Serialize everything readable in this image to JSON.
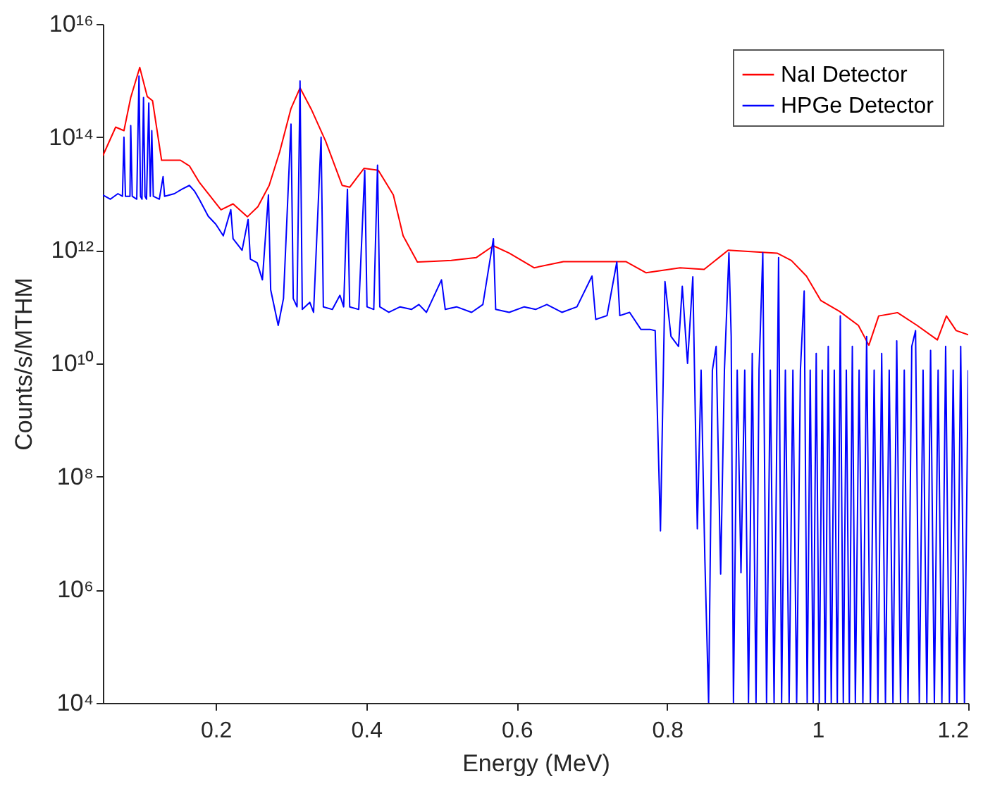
{
  "chart_data": {
    "type": "line",
    "xlabel": "Energy (MeV)",
    "ylabel": "Counts/s/MTHM",
    "log": "y",
    "grid": false,
    "legend": "top right",
    "line_style": "solid",
    "marker": "none",
    "xlim": [
      0.05,
      1.2
    ],
    "xticks": [
      0.2,
      0.4,
      0.6,
      0.8,
      1,
      1.2
    ],
    "ylim": [
      10000.0,
      1e+16
    ],
    "yticks": [
      {
        "value": 10000.0,
        "label": "10⁴"
      },
      {
        "value": 1000000.0,
        "label": "10⁶"
      },
      {
        "value": 100000000.0,
        "label": "10⁸"
      },
      {
        "value": 10000000000.0,
        "label": "10¹⁰"
      },
      {
        "value": 1000000000000.0,
        "label": "10¹²"
      },
      {
        "value": 100000000000000.0,
        "label": "10¹⁴"
      },
      {
        "value": 1e+16,
        "label": "10¹⁶"
      }
    ],
    "series": [
      {
        "name": "NaI Detector",
        "color": "#ff0000",
        "x": [
          0.05,
          0.067,
          0.078,
          0.087,
          0.099,
          0.109,
          0.116,
          0.128,
          0.153,
          0.165,
          0.178,
          0.207,
          0.223,
          0.242,
          0.256,
          0.271,
          0.285,
          0.3,
          0.312,
          0.327,
          0.346,
          0.368,
          0.378,
          0.397,
          0.416,
          0.436,
          0.449,
          0.468,
          0.49,
          0.513,
          0.546,
          0.569,
          0.59,
          0.623,
          0.662,
          0.707,
          0.745,
          0.772,
          0.817,
          0.849,
          0.881,
          0.919,
          0.946,
          0.965,
          0.985,
          1.004,
          1.029,
          1.054,
          1.068,
          1.081,
          1.106,
          1.132,
          1.159,
          1.171,
          1.184,
          1.2
        ],
        "values": [
          47000000000000.0,
          150000000000000.0,
          130000000000000.0,
          500000000000000.0,
          1700000000000000.0,
          520000000000000.0,
          440000000000000.0,
          39000000000000.0,
          39000000000000.0,
          31000000000000.0,
          16000000000000.0,
          5200000000000.0,
          6600000000000.0,
          3900000000000.0,
          5900000000000.0,
          14000000000000.0,
          55000000000000.0,
          320000000000000.0,
          740000000000000.0,
          310000000000000.0,
          85000000000000.0,
          14000000000000.0,
          13000000000000.0,
          28000000000000.0,
          26000000000000.0,
          9500000000000.0,
          1800000000000.0,
          620000000000.0,
          640000000000.0,
          660000000000.0,
          740000000000.0,
          1200000000000.0,
          890000000000.0,
          490000000000.0,
          630000000000.0,
          630000000000.0,
          630000000000.0,
          400000000000.0,
          490000000000.0,
          460000000000.0,
          1000000000000.0,
          930000000000.0,
          890000000000.0,
          660000000000.0,
          350000000000.0,
          130000000000.0,
          83000000000.0,
          47000000000.0,
          21000000000.0,
          69000000000.0,
          79000000000.0,
          47000000000.0,
          26000000000.0,
          69000000000.0,
          38000000000.0,
          32000000000.0
        ]
      },
      {
        "name": "HPGe Detector",
        "color": "#0000ff",
        "x": [
          0.05,
          0.06,
          0.07,
          0.076,
          0.078,
          0.08,
          0.086,
          0.087,
          0.089,
          0.095,
          0.098,
          0.1,
          0.102,
          0.104,
          0.106,
          0.108,
          0.111,
          0.113,
          0.115,
          0.117,
          0.125,
          0.13,
          0.132,
          0.145,
          0.155,
          0.165,
          0.172,
          0.178,
          0.19,
          0.2,
          0.21,
          0.22,
          0.223,
          0.235,
          0.243,
          0.246,
          0.255,
          0.262,
          0.27,
          0.273,
          0.283,
          0.29,
          0.3,
          0.303,
          0.308,
          0.312,
          0.315,
          0.325,
          0.33,
          0.34,
          0.343,
          0.355,
          0.365,
          0.37,
          0.375,
          0.378,
          0.39,
          0.398,
          0.401,
          0.41,
          0.415,
          0.418,
          0.43,
          0.445,
          0.46,
          0.47,
          0.48,
          0.5,
          0.505,
          0.52,
          0.54,
          0.555,
          0.569,
          0.572,
          0.59,
          0.61,
          0.625,
          0.64,
          0.66,
          0.68,
          0.7,
          0.705,
          0.72,
          0.733,
          0.737,
          0.75,
          0.765,
          0.777,
          0.784,
          0.791,
          0.797,
          0.805,
          0.815,
          0.82,
          0.827,
          0.834,
          0.84,
          0.845,
          0.85,
          0.855,
          0.86,
          0.865,
          0.871,
          0.876,
          0.882,
          0.885,
          0.888,
          0.893,
          0.898,
          0.903,
          0.908,
          0.913,
          0.918,
          0.922,
          0.927,
          0.932,
          0.937,
          0.942,
          0.948,
          0.952,
          0.957,
          0.962,
          0.967,
          0.972,
          0.977,
          0.982,
          0.986,
          0.99,
          0.994,
          0.998,
          1.002,
          1.006,
          1.01,
          1.014,
          1.018,
          1.022,
          1.026,
          1.03,
          1.034,
          1.038,
          1.042,
          1.046,
          1.05,
          1.055,
          1.06,
          1.065,
          1.07,
          1.075,
          1.08,
          1.085,
          1.09,
          1.095,
          1.1,
          1.105,
          1.11,
          1.115,
          1.12,
          1.125,
          1.13,
          1.135,
          1.14,
          1.145,
          1.15,
          1.155,
          1.16,
          1.165,
          1.17,
          1.175,
          1.18,
          1.185,
          1.19,
          1.195,
          1.2
        ],
        "values": [
          9500000000000.0,
          8000000000000.0,
          10000000000000.0,
          9000000000000.0,
          100000000000000.0,
          9000000000000.0,
          9000000000000.0,
          160000000000000.0,
          9000000000000.0,
          8000000000000.0,
          1200000000000000.0,
          9000000000000.0,
          8000000000000.0,
          500000000000000.0,
          9000000000000.0,
          8000000000000.0,
          400000000000000.0,
          9000000000000.0,
          130000000000000.0,
          9000000000000.0,
          8000000000000.0,
          20000000000000.0,
          9000000000000.0,
          10000000000000.0,
          12000000000000.0,
          14000000000000.0,
          11000000000000.0,
          8000000000000.0,
          4000000000000.0,
          2900000000000.0,
          1800000000000.0,
          5200000000000.0,
          1600000000000.0,
          1000000000000.0,
          3500000000000.0,
          700000000000.0,
          600000000000.0,
          300000000000.0,
          9500000000000.0,
          200000000000.0,
          47000000000.0,
          140000000000.0,
          170000000000000.0,
          140000000000.0,
          100000000000.0,
          980000000000000.0,
          90000000000.0,
          120000000000.0,
          80000000000.0,
          100000000000000.0,
          100000000000.0,
          90000000000.0,
          160000000000.0,
          100000000000.0,
          12000000000000.0,
          100000000000.0,
          90000000000.0,
          26000000000000.0,
          100000000000.0,
          90000000000.0,
          32000000000000.0,
          100000000000.0,
          80000000000.0,
          100000000000.0,
          90000000000.0,
          110000000000.0,
          80000000000.0,
          300000000000.0,
          90000000000.0,
          100000000000.0,
          80000000000.0,
          110000000000.0,
          1600000000000.0,
          90000000000.0,
          80000000000.0,
          100000000000.0,
          90000000000.0,
          110000000000.0,
          80000000000.0,
          100000000000.0,
          350000000000.0,
          60000000000.0,
          70000000000.0,
          620000000000.0,
          70000000000.0,
          80000000000.0,
          40000000000.0,
          40000000000.0,
          38000000000.0,
          11000000.0,
          280000000000.0,
          30000000000.0,
          20000000000.0,
          230000000000.0,
          10000000000.0,
          340000000000.0,
          12000000.0,
          7600000000.0,
          3500000.0,
          10000.0,
          7600000000.0,
          20000000000.0,
          1900000.0,
          7600000000.0,
          900000000000.0,
          30000000000.0,
          10000.0,
          7600000000.0,
          2000000.0,
          7600000000.0,
          10000.0,
          15000000000.0,
          10000.0,
          7600000000.0,
          900000000000.0,
          10000.0,
          7600000000.0,
          10000.0,
          740000000000.0,
          10000.0,
          7600000000.0,
          10000.0,
          7600000000.0,
          10000.0,
          7600000000.0,
          190000000000.0,
          10000.0,
          7600000000.0,
          10000.0,
          15000000000.0,
          10000.0,
          7600000000.0,
          10000.0,
          20000000000.0,
          10000.0,
          7600000000.0,
          10000.0,
          69000000000.0,
          10000.0,
          7600000000.0,
          10000.0,
          20000000000.0,
          10000.0,
          7600000000.0,
          10000.0,
          30000000000.0,
          10000.0,
          7600000000.0,
          10000.0,
          15000000000.0,
          10000.0,
          7600000000.0,
          10000.0,
          25000000000.0,
          10000.0,
          7600000000.0,
          10000.0,
          20000000000.0,
          38000000000.0,
          10000.0,
          7600000000.0,
          10000.0,
          17000000000.0,
          10000.0,
          7600000000.0,
          10000.0,
          20000000000.0,
          10000.0,
          7600000000.0,
          10000.0,
          20000000000.0,
          10000.0,
          7600000000.0
        ]
      }
    ]
  }
}
